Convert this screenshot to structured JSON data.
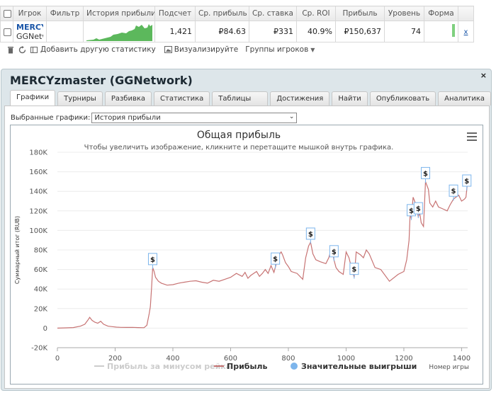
{
  "table": {
    "headers": [
      "Игрок",
      "Фильтр",
      "История прибыли",
      "Подсчет",
      "Ср. прибыль",
      "Ср. ставка",
      "Ср. ROI",
      "Прибыль",
      "Уровень",
      "Форма"
    ],
    "row": {
      "player_name": "MERCYz",
      "player_network": "GGNetwo",
      "count": "1,421",
      "avg_profit": "₽84.63",
      "avg_stake": "₽331",
      "avg_roi": "40.9%",
      "profit": "₽150,637",
      "level": "74",
      "remove": "x"
    }
  },
  "toolbar": {
    "delete_icon": "trash-icon",
    "refresh_icon": "refresh-icon",
    "add_stats_label": "Добавить другую статистику",
    "visualize_label": "Визуализируйте",
    "player_groups_label": "Группы игроков"
  },
  "dialog": {
    "title": "MERCYzmaster (GGNetwork)",
    "close_label": "×",
    "tabs": [
      "Графики",
      "Турниры",
      "Разбивка",
      "Статистика",
      "Таблицы лидеров",
      "Достижения",
      "Найти",
      "Опубликовать",
      "Аналитика"
    ],
    "selected_graphs_label": "Выбранные графики:",
    "selected_graph_value": "История прибыли"
  },
  "chart_data": {
    "type": "line",
    "title": "Общая прибыль",
    "subtitle": "Чтобы увеличить изображение, кликните и перетащите мышкой внутрь графика.",
    "ylabel": "Суммарный итог (RUB)",
    "xlabel": "Номер игры",
    "xlim": [
      0,
      1421
    ],
    "ylim": [
      -20000,
      180000
    ],
    "x_ticks": [
      "0",
      "200",
      "400",
      "600",
      "800",
      "1000",
      "1200",
      "1400"
    ],
    "y_ticks": [
      "-20K",
      "0",
      "20K",
      "40K",
      "60K",
      "80K",
      "100K",
      "120K",
      "140K",
      "160K",
      "180K"
    ],
    "series": [
      {
        "name": "Прибыль",
        "color": "#c77373",
        "x": [
          0,
          30,
          55,
          80,
          95,
          105,
          112,
          120,
          130,
          140,
          150,
          160,
          175,
          190,
          205,
          220,
          240,
          260,
          280,
          300,
          310,
          318,
          322,
          326,
          330,
          335,
          340,
          350,
          360,
          370,
          380,
          400,
          420,
          440,
          460,
          480,
          500,
          520,
          540,
          560,
          580,
          600,
          620,
          640,
          650,
          660,
          670,
          690,
          700,
          710,
          720,
          730,
          740,
          750,
          760,
          770,
          775,
          780,
          790,
          800,
          810,
          830,
          850,
          860,
          870,
          877,
          885,
          895,
          910,
          930,
          940,
          950,
          958,
          965,
          975,
          990,
          1000,
          1010,
          1020,
          1028,
          1035,
          1050,
          1060,
          1070,
          1080,
          1100,
          1120,
          1150,
          1180,
          1200,
          1210,
          1218,
          1222,
          1226,
          1232,
          1240,
          1250,
          1255,
          1260,
          1268,
          1275,
          1285,
          1290,
          1300,
          1310,
          1320,
          1335,
          1350,
          1360,
          1372,
          1380,
          1390,
          1400,
          1410,
          1415,
          1421
        ],
        "values": [
          0,
          300,
          600,
          2000,
          4000,
          8000,
          11000,
          8000,
          6000,
          5000,
          7000,
          4000,
          2000,
          1500,
          1000,
          800,
          700,
          800,
          600,
          400,
          3000,
          15000,
          22000,
          40000,
          62000,
          58000,
          52000,
          48000,
          46000,
          45000,
          44000,
          44500,
          46000,
          47000,
          48000,
          48500,
          47000,
          46000,
          49000,
          48000,
          50000,
          52000,
          56000,
          53000,
          57000,
          51000,
          54000,
          58000,
          53000,
          56000,
          60000,
          56000,
          64000,
          57000,
          68000,
          76000,
          78000,
          75000,
          67000,
          63000,
          58000,
          56000,
          50000,
          72000,
          84000,
          88000,
          76000,
          70000,
          68000,
          66000,
          72000,
          82000,
          70000,
          62000,
          58000,
          55000,
          78000,
          72000,
          60000,
          52000,
          78000,
          75000,
          72000,
          80000,
          76000,
          62000,
          60000,
          48000,
          55000,
          58000,
          70000,
          90000,
          118000,
          112000,
          134000,
          128000,
          114000,
          118000,
          108000,
          104000,
          150000,
          142000,
          128000,
          124000,
          130000,
          124000,
          122000,
          120000,
          126000,
          132000,
          134000,
          136000,
          130000,
          132000,
          134000,
          150637
        ]
      }
    ],
    "legend": [
      "Прибыль за минусом рейка",
      "Прибыль",
      "Значительные выигрыши"
    ],
    "legend_colors": [
      "#cccccc",
      "#c77373",
      "#7cb5ec"
    ],
    "big_wins": [
      {
        "x": 330,
        "label": "$"
      },
      {
        "x": 755,
        "label": "$"
      },
      {
        "x": 877,
        "label": "$"
      },
      {
        "x": 958,
        "label": "$"
      },
      {
        "x": 1028,
        "label": "$"
      },
      {
        "x": 1226,
        "label": "$"
      },
      {
        "x": 1250,
        "label": "$"
      },
      {
        "x": 1275,
        "label": "$"
      },
      {
        "x": 1372,
        "label": "$"
      },
      {
        "x": 1418,
        "label": "$"
      }
    ]
  }
}
